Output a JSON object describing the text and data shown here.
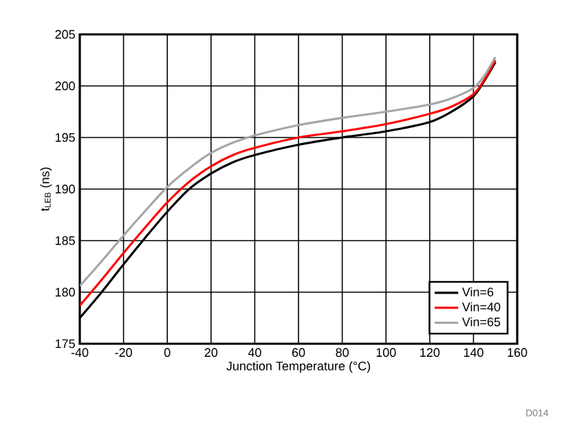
{
  "chart_data": {
    "type": "line",
    "xlabel": "Junction Temperature (°C)",
    "ylabel": "t$_{LEB}$ (ns)",
    "x": [
      -40,
      -30,
      -20,
      -10,
      0,
      10,
      20,
      30,
      40,
      60,
      80,
      100,
      120,
      130,
      140,
      145,
      150
    ],
    "series": [
      {
        "name": "Vin=6",
        "color": "#000000",
        "values": [
          177.5,
          180,
          182.7,
          185.3,
          187.8,
          190,
          191.5,
          192.6,
          193.3,
          194.3,
          195,
          195.6,
          196.5,
          197.5,
          199,
          200.5,
          202.3
        ]
      },
      {
        "name": "Vin=40",
        "color": "#ff0000",
        "values": [
          178.7,
          181.2,
          183.8,
          186.3,
          188.7,
          190.7,
          192.2,
          193.3,
          194,
          195,
          195.6,
          196.3,
          197.3,
          198,
          199.2,
          200.6,
          202.5
        ]
      },
      {
        "name": "Vin=65",
        "color": "#a6a6a6",
        "values": [
          180.6,
          183,
          185.5,
          187.9,
          190.2,
          192,
          193.5,
          194.5,
          195.2,
          196.2,
          196.9,
          197.5,
          198.2,
          198.8,
          199.8,
          201,
          202.8
        ]
      }
    ],
    "xlim": [
      -40,
      160
    ],
    "xticks": [
      -40,
      -20,
      0,
      20,
      40,
      60,
      80,
      100,
      120,
      140,
      160
    ],
    "ylim": [
      175,
      205
    ],
    "yticks": [
      175,
      180,
      185,
      190,
      195,
      200,
      205
    ],
    "grid": true,
    "legend": "bottom right",
    "marker": "none",
    "line_style": "solid",
    "annotations": [
      "D014"
    ]
  }
}
